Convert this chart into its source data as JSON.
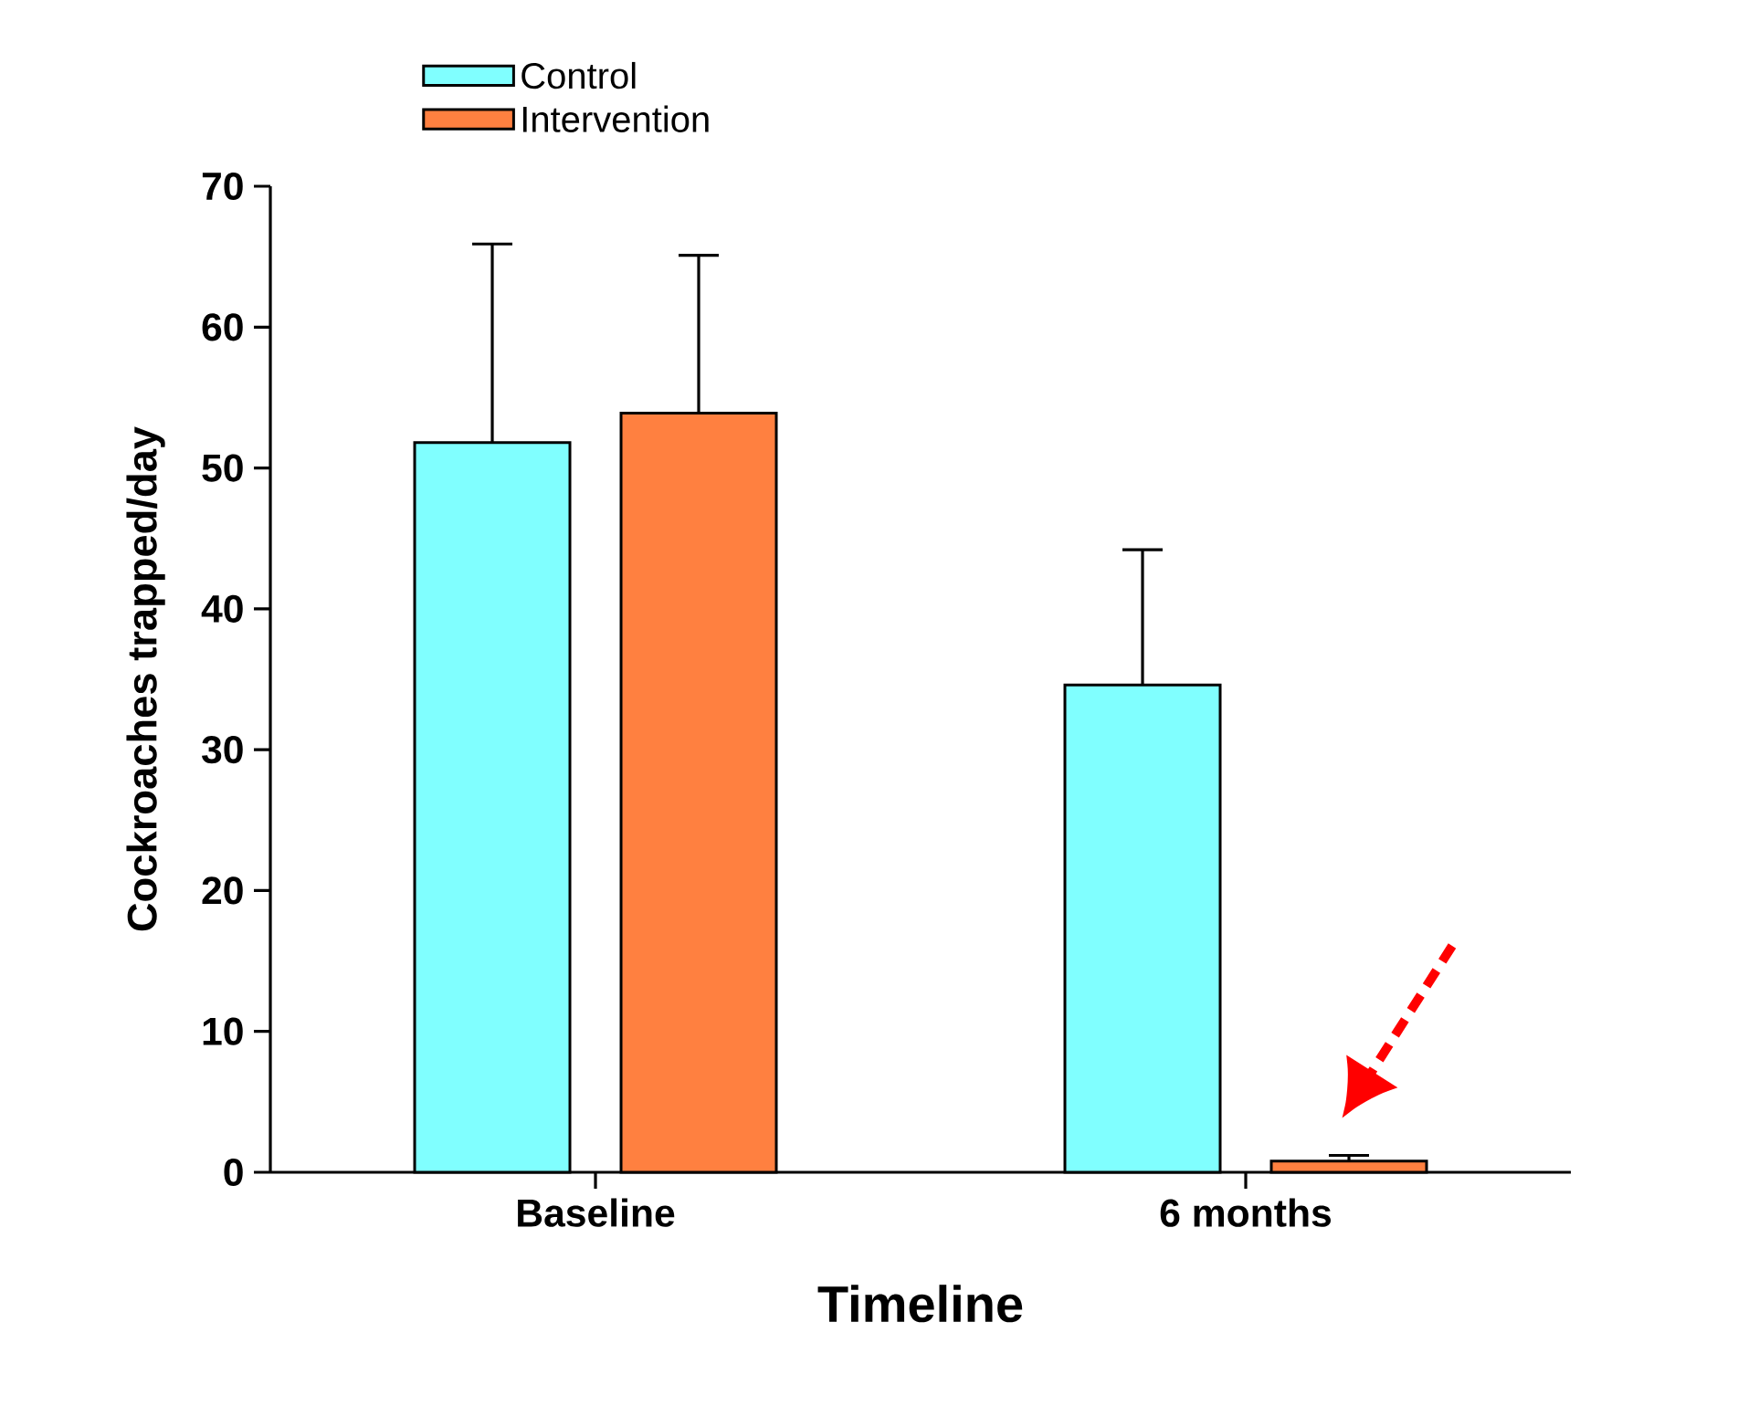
{
  "chart_data": {
    "type": "bar",
    "xlabel": "Timeline",
    "ylabel": "Cockroaches trapped/day",
    "categories": [
      "Baseline",
      "6 months"
    ],
    "series": [
      {
        "name": "Control",
        "color": "#80ffff",
        "values": [
          51.8,
          34.6
        ],
        "errors": [
          14.1,
          9.6
        ]
      },
      {
        "name": "Intervention",
        "color": "#ff8040",
        "values": [
          53.9,
          0.8
        ],
        "errors": [
          11.2,
          0.4
        ]
      }
    ],
    "ylim": [
      0,
      70
    ],
    "yticks": [
      0,
      10,
      20,
      30,
      40,
      50,
      60,
      70
    ],
    "grid": false,
    "legend": "top left"
  }
}
